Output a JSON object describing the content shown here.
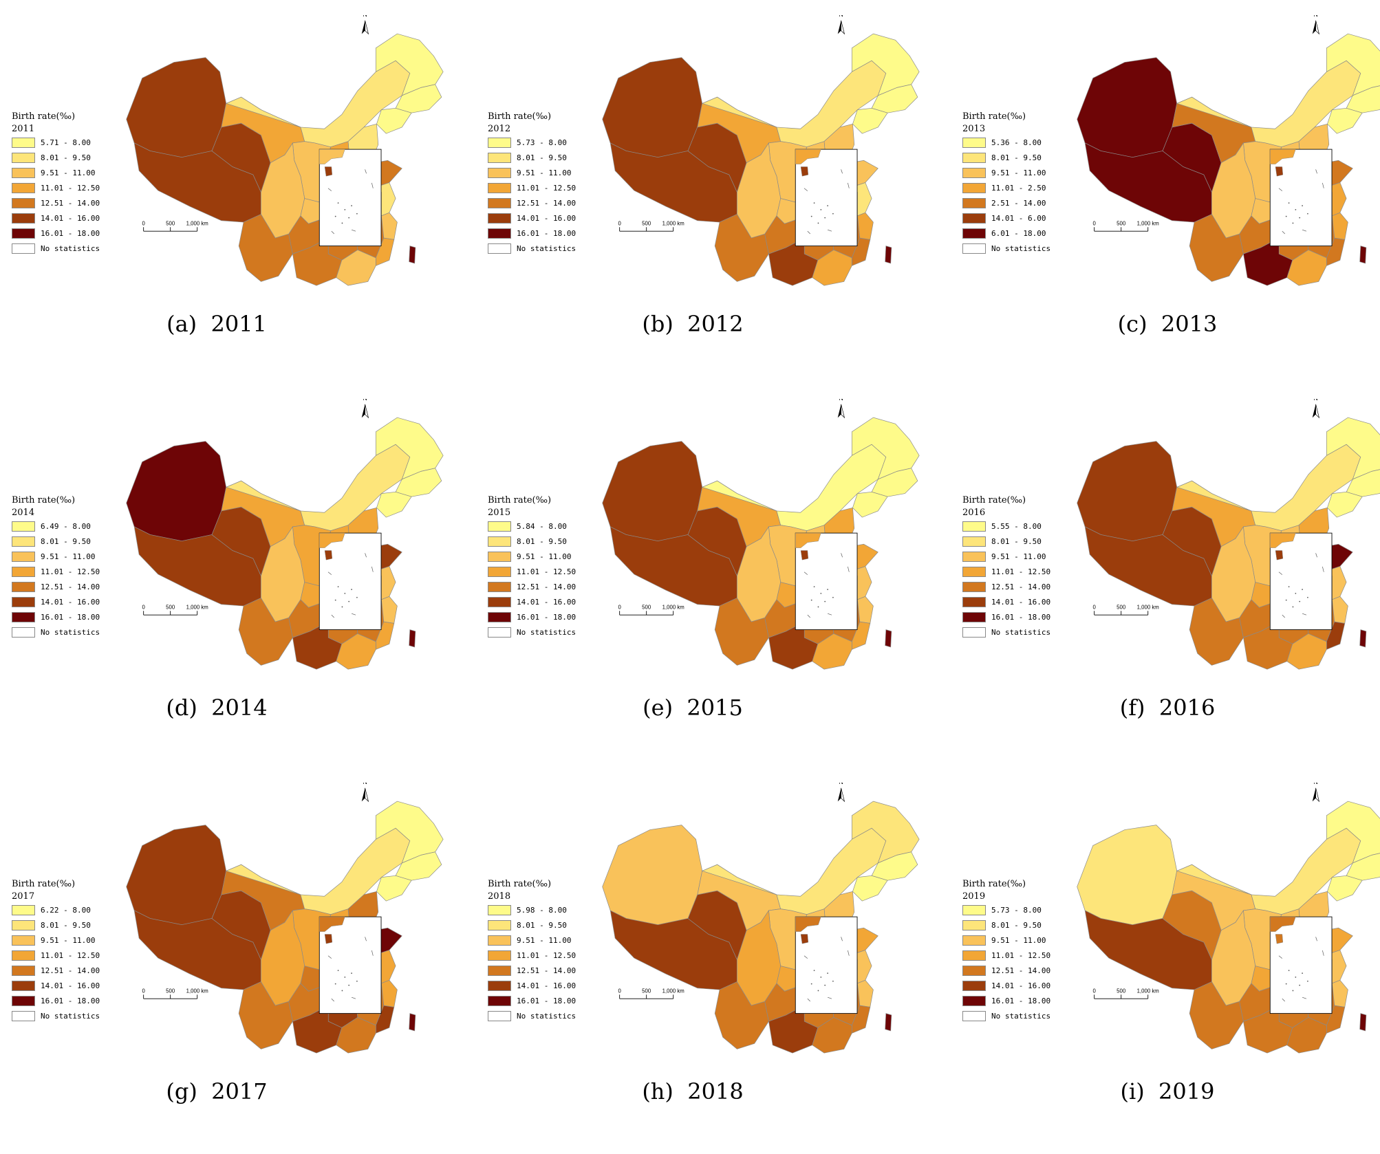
{
  "legend": {
    "title": "Birth rate(‰)",
    "no_stats_label": "No statistics",
    "no_stats_color": "#ffffff"
  },
  "palette": [
    "#fefb8a",
    "#fde57a",
    "#f9c25a",
    "#f2a636",
    "#d2781f",
    "#9b3d0c",
    "#6e0506"
  ],
  "scale_bar": {
    "labels": [
      "0",
      "500",
      "1,000 km"
    ]
  },
  "north_label": "N",
  "panels": [
    {
      "caption": "(a)  2011",
      "year": "2011",
      "classes": [
        "5.71 - 8.00",
        "8.01 - 9.50",
        "9.51 - 11.00",
        "11.01 - 12.50",
        "12.51 - 14.00",
        "14.01 - 16.00",
        "16.01 - 18.00"
      ],
      "regions": {
        "xinjiang": 5,
        "tibet": 5,
        "qinghai": 5,
        "gansu": 3,
        "inner_mongolia": 1,
        "heilongjiang": 0,
        "jilin": 0,
        "liaoning": 0,
        "hebei": 1,
        "shanxi": 3,
        "shaanxi": 2,
        "henan": 2,
        "shandong": 4,
        "sichuan": 2,
        "chongqing": 2,
        "hubei": 2,
        "anhui": 2,
        "jiangsu": 1,
        "yunnan": 4,
        "guizhou": 4,
        "hunan": 4,
        "jiangxi": 4,
        "zhejiang": 2,
        "fujian": 3,
        "guangxi": 4,
        "guangdong": 2,
        "hainan": 5,
        "taiwan": 6
      }
    },
    {
      "caption": "(b)  2012",
      "year": "2012",
      "classes": [
        "5.73 - 8.00",
        "8.01 - 9.50",
        "9.51 - 11.00",
        "11.01 - 12.50",
        "12.51 - 14.00",
        "14.01 - 16.00",
        "16.01 - 18.00"
      ],
      "regions": {
        "xinjiang": 5,
        "tibet": 5,
        "qinghai": 5,
        "gansu": 3,
        "inner_mongolia": 1,
        "heilongjiang": 0,
        "jilin": 0,
        "liaoning": 0,
        "hebei": 2,
        "shanxi": 2,
        "shaanxi": 2,
        "henan": 3,
        "shandong": 2,
        "sichuan": 2,
        "chongqing": 2,
        "hubei": 2,
        "anhui": 3,
        "jiangsu": 1,
        "yunnan": 4,
        "guizhou": 4,
        "hunan": 4,
        "jiangxi": 4,
        "zhejiang": 3,
        "fujian": 4,
        "guangxi": 5,
        "guangdong": 3,
        "hainan": 5,
        "taiwan": 6
      }
    },
    {
      "caption": "(c)  2013",
      "year": "2013",
      "classes": [
        "5.36 - 8.00",
        "8.01 - 9.50",
        "9.51 - 11.00",
        "11.01 - 2.50",
        "2.51 - 14.00",
        "14.01 - 6.00",
        "6.01 - 18.00"
      ],
      "regions": {
        "xinjiang": 6,
        "tibet": 6,
        "qinghai": 6,
        "gansu": 4,
        "inner_mongolia": 1,
        "heilongjiang": 0,
        "jilin": 0,
        "liaoning": 0,
        "hebei": 2,
        "shanxi": 2,
        "shaanxi": 2,
        "henan": 4,
        "shandong": 4,
        "sichuan": 2,
        "chongqing": 2,
        "hubei": 4,
        "anhui": 4,
        "jiangsu": 3,
        "yunnan": 4,
        "guizhou": 4,
        "hunan": 4,
        "jiangxi": 4,
        "zhejiang": 3,
        "fujian": 4,
        "guangxi": 6,
        "guangdong": 3,
        "hainan": 5,
        "taiwan": 6
      }
    },
    {
      "caption": "(d)  2014",
      "year": "2014",
      "classes": [
        "6.49 - 8.00",
        "8.01 - 9.50",
        "9.51 - 11.00",
        "11.01 - 12.50",
        "12.51 - 14.00",
        "14.01 - 16.00",
        "16.01 - 18.00"
      ],
      "regions": {
        "xinjiang": 6,
        "tibet": 5,
        "qinghai": 5,
        "gansu": 3,
        "inner_mongolia": 1,
        "heilongjiang": 0,
        "jilin": 0,
        "liaoning": 0,
        "hebei": 3,
        "shanxi": 3,
        "shaanxi": 3,
        "henan": 4,
        "shandong": 5,
        "sichuan": 2,
        "chongqing": 3,
        "hubei": 3,
        "anhui": 4,
        "jiangsu": 2,
        "yunnan": 4,
        "guizhou": 4,
        "hunan": 4,
        "jiangxi": 4,
        "zhejiang": 2,
        "fujian": 3,
        "guangxi": 5,
        "guangdong": 3,
        "hainan": 5,
        "taiwan": 6
      }
    },
    {
      "caption": "(e)  2015",
      "year": "2015",
      "classes": [
        "5.84 - 8.00",
        "8.01 - 9.50",
        "9.51 - 11.00",
        "11.01 - 12.50",
        "12.51 - 14.00",
        "14.01 - 16.00",
        "16.01 - 18.00"
      ],
      "regions": {
        "xinjiang": 5,
        "tibet": 5,
        "qinghai": 5,
        "gansu": 3,
        "inner_mongolia": 0,
        "heilongjiang": 0,
        "jilin": 0,
        "liaoning": 0,
        "hebei": 3,
        "shanxi": 2,
        "shaanxi": 2,
        "henan": 3,
        "shandong": 3,
        "sichuan": 2,
        "chongqing": 3,
        "hubei": 3,
        "anhui": 3,
        "jiangsu": 2,
        "yunnan": 4,
        "guizhou": 4,
        "hunan": 4,
        "jiangxi": 4,
        "zhejiang": 2,
        "fujian": 3,
        "guangxi": 5,
        "guangdong": 3,
        "hainan": 5,
        "taiwan": 6
      }
    },
    {
      "caption": "(f)  2016",
      "year": "2016",
      "classes": [
        "5.55 - 8.00",
        "8.01 - 9.50",
        "9.51 - 11.00",
        "11.01 - 12.50",
        "12.51 - 14.00",
        "14.01 - 16.00",
        "16.01 - 18.00"
      ],
      "regions": {
        "xinjiang": 5,
        "tibet": 5,
        "qinghai": 5,
        "gansu": 3,
        "inner_mongolia": 1,
        "heilongjiang": 0,
        "jilin": 0,
        "liaoning": 0,
        "hebei": 3,
        "shanxi": 2,
        "shaanxi": 2,
        "henan": 4,
        "shandong": 6,
        "sichuan": 2,
        "chongqing": 3,
        "hubei": 3,
        "anhui": 4,
        "jiangsu": 2,
        "yunnan": 4,
        "guizhou": 4,
        "hunan": 4,
        "jiangxi": 4,
        "zhejiang": 2,
        "fujian": 5,
        "guangxi": 4,
        "guangdong": 3,
        "hainan": 5,
        "taiwan": 6
      }
    },
    {
      "caption": "(g)  2017",
      "year": "2017",
      "classes": [
        "6.22 - 8.00",
        "8.01 - 9.50",
        "9.51 - 11.00",
        "11.01 - 12.50",
        "12.51 - 14.00",
        "14.01 - 16.00",
        "16.01 - 18.00"
      ],
      "regions": {
        "xinjiang": 5,
        "tibet": 5,
        "qinghai": 5,
        "gansu": 4,
        "inner_mongolia": 1,
        "heilongjiang": 0,
        "jilin": 0,
        "liaoning": 0,
        "hebei": 4,
        "shanxi": 3,
        "shaanxi": 3,
        "henan": 4,
        "shandong": 6,
        "sichuan": 3,
        "chongqing": 4,
        "hubei": 4,
        "anhui": 5,
        "jiangsu": 3,
        "yunnan": 4,
        "guizhou": 4,
        "hunan": 5,
        "jiangxi": 4,
        "zhejiang": 3,
        "fujian": 5,
        "guangxi": 5,
        "guangdong": 4,
        "hainan": 5,
        "taiwan": 6
      }
    },
    {
      "caption": "(h)  2018",
      "year": "2018",
      "classes": [
        "5.98 - 8.00",
        "8.01 - 9.50",
        "9.51 - 11.00",
        "11.01 - 12.50",
        "12.51 - 14.00",
        "14.01 - 16.00",
        "16.01 - 18.00"
      ],
      "regions": {
        "xinjiang": 2,
        "tibet": 5,
        "qinghai": 5,
        "gansu": 2,
        "inner_mongolia": 1,
        "heilongjiang": 1,
        "jilin": 0,
        "liaoning": 0,
        "hebei": 2,
        "shanxi": 2,
        "shaanxi": 2,
        "henan": 3,
        "shandong": 3,
        "sichuan": 3,
        "chongqing": 3,
        "hubei": 3,
        "anhui": 3,
        "jiangsu": 2,
        "yunnan": 4,
        "guizhou": 4,
        "hunan": 4,
        "jiangxi": 4,
        "zhejiang": 2,
        "fujian": 4,
        "guangxi": 5,
        "guangdong": 4,
        "hainan": 5,
        "taiwan": 6
      }
    },
    {
      "caption": "(i)  2019",
      "year": "2019",
      "classes": [
        "5.73 - 8.00",
        "8.01 - 9.50",
        "9.51 - 11.00",
        "11.01 - 12.50",
        "12.51 - 14.00",
        "14.01 - 16.00",
        "16.01 - 18.00"
      ],
      "regions": {
        "xinjiang": 1,
        "tibet": 5,
        "qinghai": 4,
        "gansu": 2,
        "inner_mongolia": 1,
        "heilongjiang": 0,
        "jilin": 0,
        "liaoning": 0,
        "hebei": 2,
        "shanxi": 2,
        "shaanxi": 2,
        "henan": 3,
        "shandong": 3,
        "sichuan": 2,
        "chongqing": 3,
        "hubei": 2,
        "anhui": 3,
        "jiangsu": 2,
        "yunnan": 4,
        "guizhou": 4,
        "hunan": 4,
        "jiangxi": 4,
        "zhejiang": 2,
        "fujian": 4,
        "guangxi": 4,
        "guangdong": 4,
        "hainan": 4,
        "taiwan": 6
      }
    }
  ]
}
